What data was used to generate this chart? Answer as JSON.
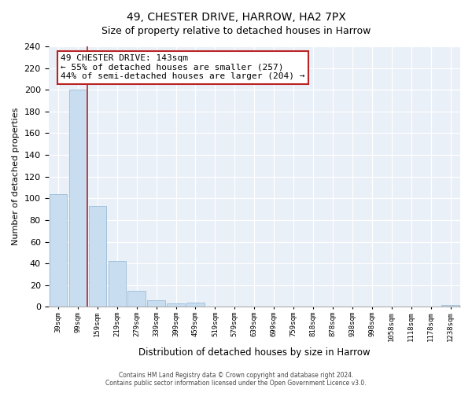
{
  "title": "49, CHESTER DRIVE, HARROW, HA2 7PX",
  "subtitle": "Size of property relative to detached houses in Harrow",
  "xlabel": "Distribution of detached houses by size in Harrow",
  "ylabel": "Number of detached properties",
  "bar_labels": [
    "39sqm",
    "99sqm",
    "159sqm",
    "219sqm",
    "279sqm",
    "339sqm",
    "399sqm",
    "459sqm",
    "519sqm",
    "579sqm",
    "639sqm",
    "699sqm",
    "759sqm",
    "818sqm",
    "878sqm",
    "938sqm",
    "998sqm",
    "1058sqm",
    "1118sqm",
    "1178sqm",
    "1238sqm"
  ],
  "bar_values": [
    104,
    200,
    93,
    42,
    15,
    6,
    3,
    4,
    0,
    0,
    0,
    0,
    0,
    0,
    0,
    0,
    0,
    0,
    0,
    0,
    2
  ],
  "bar_color": "#c8ddf0",
  "bar_edge_color": "#9bbcd8",
  "ylim": [
    0,
    240
  ],
  "yticks": [
    0,
    20,
    40,
    60,
    80,
    100,
    120,
    140,
    160,
    180,
    200,
    220,
    240
  ],
  "property_line_color": "#bb2222",
  "annotation_title": "49 CHESTER DRIVE: 143sqm",
  "annotation_line1": "← 55% of detached houses are smaller (257)",
  "annotation_line2": "44% of semi-detached houses are larger (204) →",
  "annotation_box_color": "#ffffff",
  "annotation_box_edge": "#bb2222",
  "footer_line1": "Contains HM Land Registry data © Crown copyright and database right 2024.",
  "footer_line2": "Contains public sector information licensed under the Open Government Licence v3.0.",
  "background_color": "#eaf0f8"
}
